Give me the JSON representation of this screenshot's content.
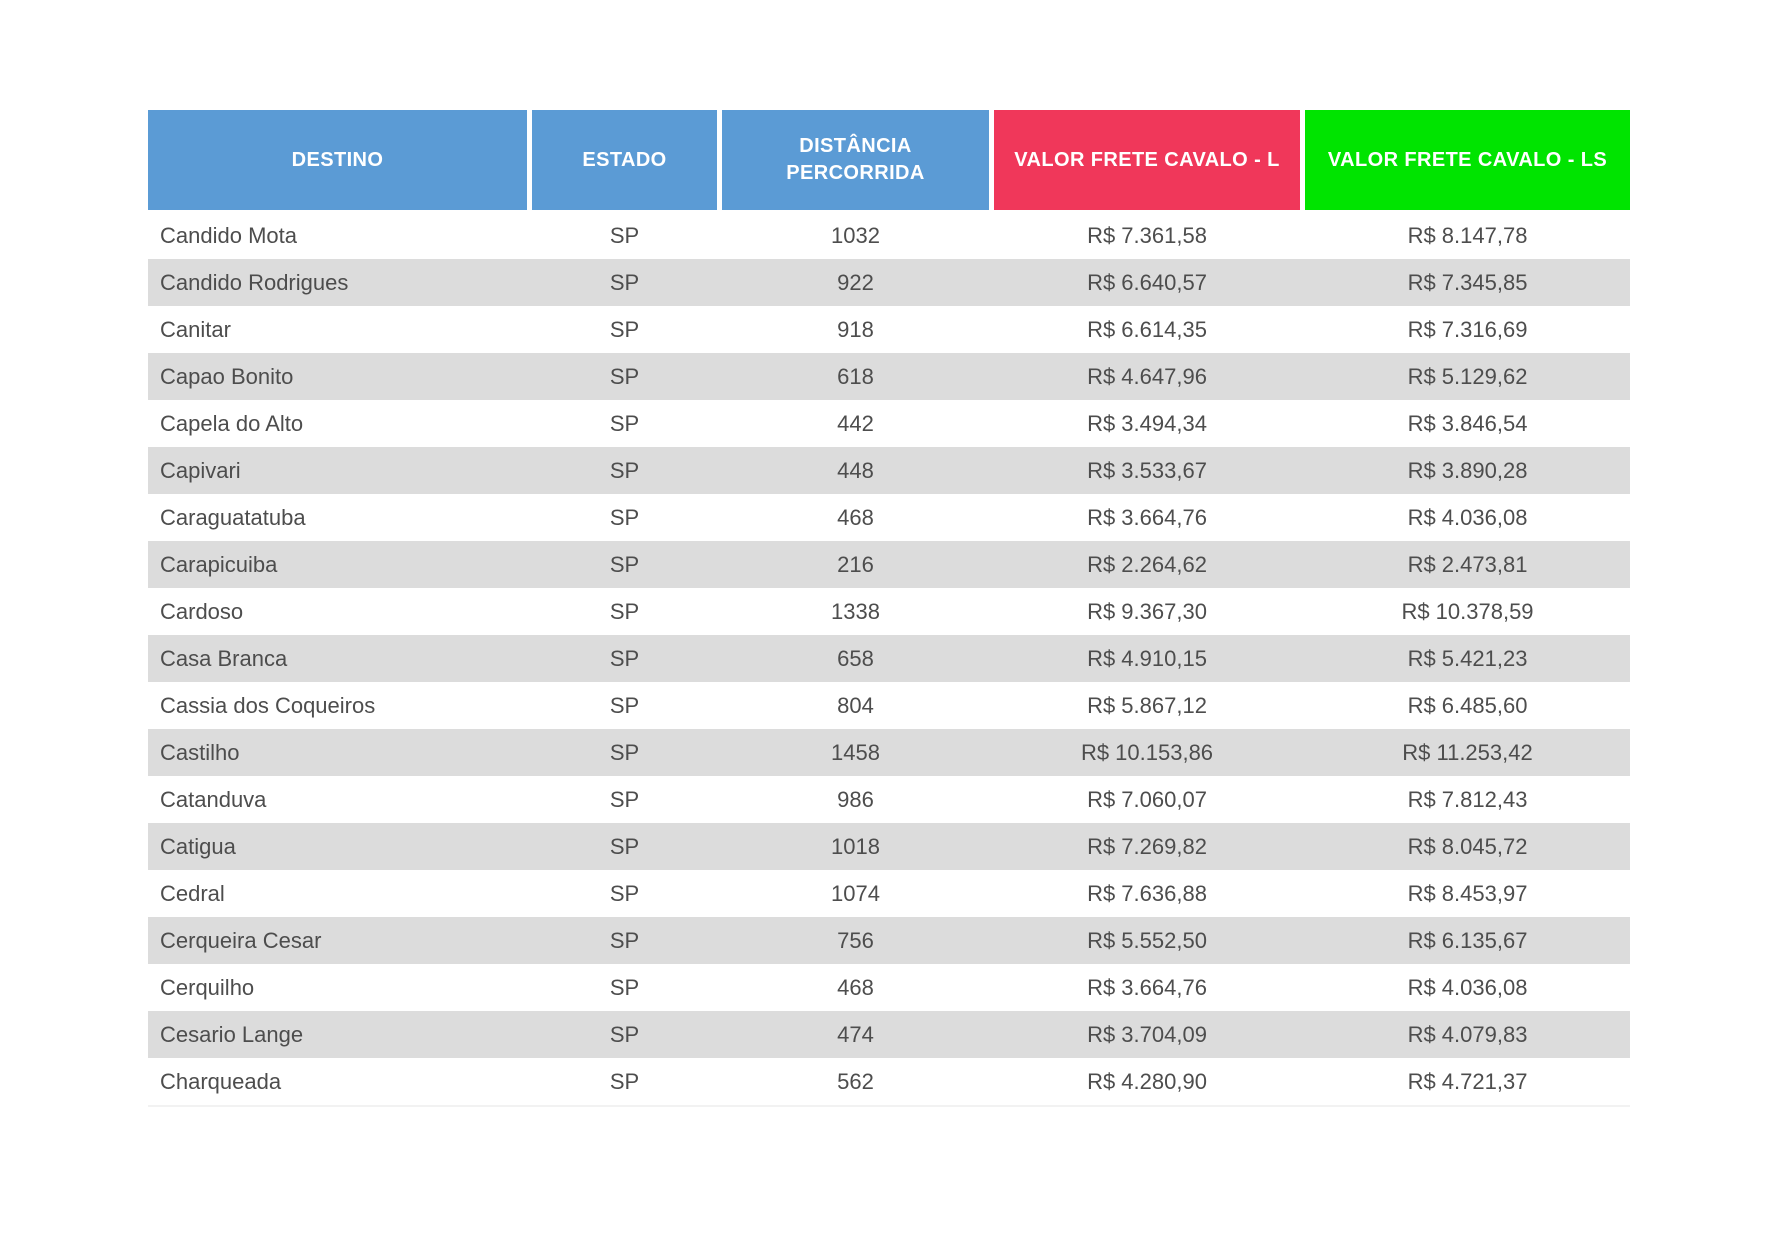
{
  "table": {
    "columns": [
      {
        "label": "DESTINO",
        "color": "#5B9BD5"
      },
      {
        "label": "ESTADO",
        "color": "#5B9BD5"
      },
      {
        "label": "DISTÂNCIA PERCORRIDA",
        "color": "#5B9BD5"
      },
      {
        "label": "VALOR FRETE CAVALO - L",
        "color": "#F0375A"
      },
      {
        "label": "VALOR FRETE CAVALO - LS",
        "color": "#00E400"
      }
    ],
    "rows": [
      [
        "Candido Mota",
        "SP",
        "1032",
        "R$ 7.361,58",
        "R$ 8.147,78"
      ],
      [
        "Candido Rodrigues",
        "SP",
        "922",
        "R$ 6.640,57",
        "R$ 7.345,85"
      ],
      [
        "Canitar",
        "SP",
        "918",
        "R$ 6.614,35",
        "R$ 7.316,69"
      ],
      [
        "Capao Bonito",
        "SP",
        "618",
        "R$ 4.647,96",
        "R$ 5.129,62"
      ],
      [
        "Capela do Alto",
        "SP",
        "442",
        "R$ 3.494,34",
        "R$ 3.846,54"
      ],
      [
        "Capivari",
        "SP",
        "448",
        "R$ 3.533,67",
        "R$ 3.890,28"
      ],
      [
        "Caraguatatuba",
        "SP",
        "468",
        "R$ 3.664,76",
        "R$ 4.036,08"
      ],
      [
        "Carapicuiba",
        "SP",
        "216",
        "R$ 2.264,62",
        "R$ 2.473,81"
      ],
      [
        "Cardoso",
        "SP",
        "1338",
        "R$ 9.367,30",
        "R$ 10.378,59"
      ],
      [
        "Casa Branca",
        "SP",
        "658",
        "R$ 4.910,15",
        "R$ 5.421,23"
      ],
      [
        "Cassia dos Coqueiros",
        "SP",
        "804",
        "R$ 5.867,12",
        "R$ 6.485,60"
      ],
      [
        "Castilho",
        "SP",
        "1458",
        "R$ 10.153,86",
        "R$ 11.253,42"
      ],
      [
        "Catanduva",
        "SP",
        "986",
        "R$ 7.060,07",
        "R$ 7.812,43"
      ],
      [
        "Catigua",
        "SP",
        "1018",
        "R$ 7.269,82",
        "R$ 8.045,72"
      ],
      [
        "Cedral",
        "SP",
        "1074",
        "R$ 7.636,88",
        "R$ 8.453,97"
      ],
      [
        "Cerqueira Cesar",
        "SP",
        "756",
        "R$ 5.552,50",
        "R$ 6.135,67"
      ],
      [
        "Cerquilho",
        "SP",
        "468",
        "R$ 3.664,76",
        "R$ 4.036,08"
      ],
      [
        "Cesario Lange",
        "SP",
        "474",
        "R$ 3.704,09",
        "R$ 4.079,83"
      ],
      [
        "Charqueada",
        "SP",
        "562",
        "R$ 4.280,90",
        "R$ 4.721,37"
      ]
    ],
    "styles": {
      "stripe_color": "#DCDCDC",
      "text_color": "#4D4D4D",
      "header_text_color": "#FFFFFF"
    }
  }
}
